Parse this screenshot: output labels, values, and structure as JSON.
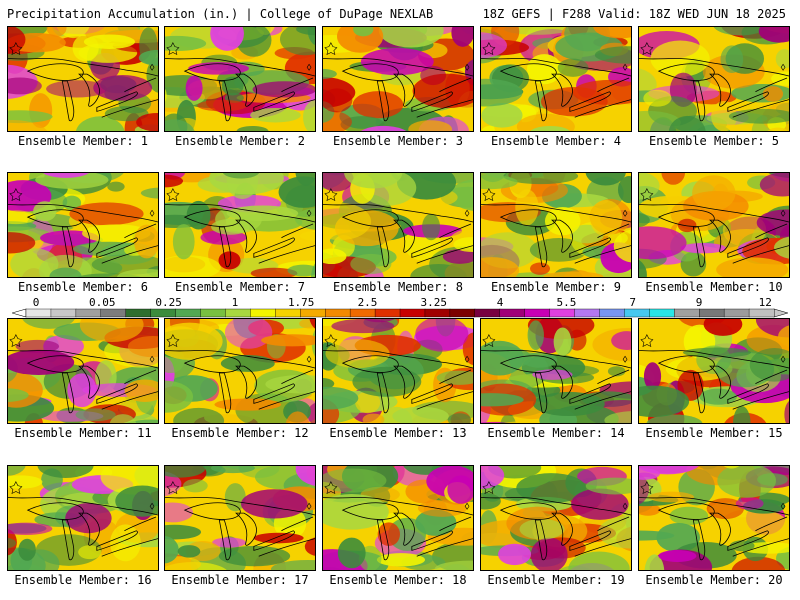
{
  "header": {
    "title": "Precipitation Accumulation (in.) | College of DuPage NEXLAB",
    "run_info": "18Z GEFS | F288 Valid: 18Z WED JUN 18 2025"
  },
  "colorbar": {
    "tick_labels": [
      "0",
      "0.05",
      "0.25",
      "1",
      "1.75",
      "2.5",
      "3.25",
      "4",
      "5.5",
      "7",
      "9",
      "12"
    ],
    "colors": [
      "#e6e6e6",
      "#c8c8c8",
      "#a0a0a0",
      "#7c7c7c",
      "#2e6e2e",
      "#3c8c3c",
      "#52a852",
      "#78c040",
      "#a8d840",
      "#f4f400",
      "#f6d200",
      "#f4aa00",
      "#f48a00",
      "#f06a00",
      "#e03000",
      "#c80000",
      "#a00000",
      "#7c0000",
      "#780040",
      "#a00078",
      "#c800b4",
      "#e040e0",
      "#b478f0",
      "#7896f0",
      "#46c8f0",
      "#28e6e6",
      "#a0a0a0",
      "#787878",
      "#9c9c9c",
      "#c0c0c0"
    ]
  },
  "panels": [
    {
      "caption": "Ensemble Member: 1"
    },
    {
      "caption": "Ensemble Member: 2"
    },
    {
      "caption": "Ensemble Member: 3"
    },
    {
      "caption": "Ensemble Member: 4"
    },
    {
      "caption": "Ensemble Member: 5"
    },
    {
      "caption": "Ensemble Member: 6"
    },
    {
      "caption": "Ensemble Member: 7"
    },
    {
      "caption": "Ensemble Member: 8"
    },
    {
      "caption": "Ensemble Member: 9"
    },
    {
      "caption": "Ensemble Member: 10"
    },
    {
      "caption": "Ensemble Member: 11"
    },
    {
      "caption": "Ensemble Member: 12"
    },
    {
      "caption": "Ensemble Member: 13"
    },
    {
      "caption": "Ensemble Member: 14"
    },
    {
      "caption": "Ensemble Member: 15"
    },
    {
      "caption": "Ensemble Member: 16"
    },
    {
      "caption": "Ensemble Member: 17"
    },
    {
      "caption": "Ensemble Member: 18"
    },
    {
      "caption": "Ensemble Member: 19"
    },
    {
      "caption": "Ensemble Member: 20"
    }
  ]
}
